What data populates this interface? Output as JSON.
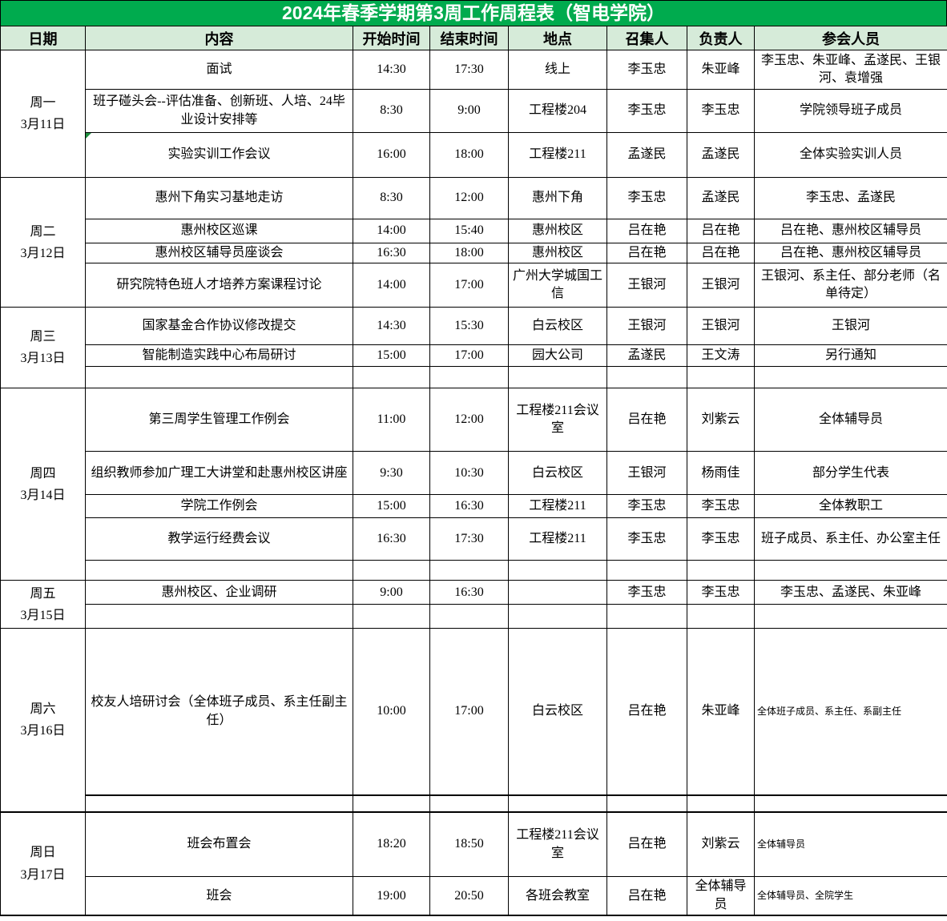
{
  "title": "2024年春季学期第3周工作周程表（智电学院）",
  "colors": {
    "title_background": "#00AB4E",
    "header_background": "#D6EBD9",
    "border": "#000000",
    "comment_marker": "#1E8E3E"
  },
  "columns": [
    "日期",
    "内容",
    "开始时间",
    "结束时间",
    "地点",
    "召集人",
    "负责人",
    "参会人员"
  ],
  "days": [
    {
      "weekday": "周一",
      "date": "3月11日",
      "rows": [
        {
          "content": "面试",
          "start": "14:30",
          "end": "17:30",
          "location": "线上",
          "convener": "李玉忠",
          "lead": "朱亚峰",
          "participants": "李玉忠、朱亚峰、孟遂民、王银河、袁增强"
        },
        {
          "content": "班子碰头会--评估准备、创新班、人培、24毕业设计安排等",
          "start": "8:30",
          "end": "9:00",
          "location": "工程楼204",
          "convener": "李玉忠",
          "lead": "李玉忠",
          "participants": "学院领导班子成员"
        },
        {
          "content": "实验实训工作会议",
          "start": "16:00",
          "end": "18:00",
          "location": "工程楼211",
          "convener": "孟遂民",
          "lead": "孟遂民",
          "participants": "全体实验实训人员",
          "marker": true
        }
      ]
    },
    {
      "weekday": "周二",
      "date": "3月12日",
      "rows": [
        {
          "content": "惠州下角实习基地走访",
          "start": "8:30",
          "end": "12:00",
          "location": "惠州下角",
          "convener": "李玉忠",
          "lead": "孟遂民",
          "participants": "李玉忠、孟遂民"
        },
        {
          "content": "惠州校区巡课",
          "start": "14:00",
          "end": "15:40",
          "location": "惠州校区",
          "convener": "吕在艳",
          "lead": "吕在艳",
          "participants": "吕在艳、惠州校区辅导员"
        },
        {
          "content": "惠州校区辅导员座谈会",
          "start": "16:30",
          "end": "18:00",
          "location": "惠州校区",
          "convener": "吕在艳",
          "lead": "吕在艳",
          "participants": "吕在艳、惠州校区辅导员"
        },
        {
          "content": "研究院特色班人才培养方案课程讨论",
          "start": "14:00",
          "end": "17:00",
          "location": "广州大学城国工信",
          "convener": "王银河",
          "lead": "王银河",
          "participants": "王银河、系主任、部分老师（名单待定）"
        }
      ]
    },
    {
      "weekday": "周三",
      "date": "3月13日",
      "rows": [
        {
          "content": "国家基金合作协议修改提交",
          "start": "14:30",
          "end": "15:30",
          "location": "白云校区",
          "convener": "王银河",
          "lead": "王银河",
          "participants": "王银河"
        },
        {
          "content": "智能制造实践中心布局研讨",
          "start": "15:00",
          "end": "17:00",
          "location": "园大公司",
          "convener": "孟遂民",
          "lead": "王文涛",
          "participants": "另行通知"
        },
        {
          "content": "",
          "start": "",
          "end": "",
          "location": "",
          "convener": "",
          "lead": "",
          "participants": ""
        }
      ]
    },
    {
      "weekday": "周四",
      "date": "3月14日",
      "rows": [
        {
          "content": "第三周学生管理工作例会",
          "start": "11:00",
          "end": "12:00",
          "location": "工程楼211会议室",
          "convener": "吕在艳",
          "lead": "刘紫云",
          "participants": "全体辅导员"
        },
        {
          "content": "组织教师参加广理工大讲堂和赴惠州校区讲座",
          "start": "9:30",
          "end": "10:30",
          "location": "白云校区",
          "convener": "王银河",
          "lead": "杨雨佳",
          "participants": "部分学生代表"
        },
        {
          "content": "学院工作例会",
          "start": "15:00",
          "end": "16:30",
          "location": "工程楼211",
          "convener": "李玉忠",
          "lead": "李玉忠",
          "participants": "全体教职工"
        },
        {
          "content": "教学运行经费会议",
          "start": "16:30",
          "end": "17:30",
          "location": "工程楼211",
          "convener": "李玉忠",
          "lead": "李玉忠",
          "participants": "班子成员、系主任、办公室主任"
        },
        {
          "content": "",
          "start": "",
          "end": "",
          "location": "",
          "convener": "",
          "lead": "",
          "participants": ""
        }
      ]
    },
    {
      "weekday": "周五",
      "date": "3月15日",
      "rows": [
        {
          "content": "惠州校区、企业调研",
          "start": "9:00",
          "end": "16:30",
          "location": "",
          "convener": "李玉忠",
          "lead": "李玉忠",
          "participants": "李玉忠、孟遂民、朱亚峰"
        },
        {
          "content": "",
          "start": "",
          "end": "",
          "location": "",
          "convener": "",
          "lead": "",
          "participants": ""
        }
      ]
    },
    {
      "weekday": "周六",
      "date": "3月16日",
      "rows": [
        {
          "content": "校友人培研讨会（全体班子成员、系主任副主任）",
          "start": "10:00",
          "end": "17:00",
          "location": "白云校区",
          "convener": "吕在艳",
          "lead": "朱亚峰",
          "participants": "全体班子成员、系主任、系副主任",
          "small": true
        },
        {
          "content": "",
          "start": "",
          "end": "",
          "location": "",
          "convener": "",
          "lead": "",
          "participants": ""
        }
      ]
    },
    {
      "weekday": "周日",
      "date": "3月17日",
      "rows": [
        {
          "content": "班会布置会",
          "start": "18:20",
          "end": "18:50",
          "location": "工程楼211会议室",
          "convener": "吕在艳",
          "lead": "刘紫云",
          "participants": "全体辅导员",
          "small": true
        },
        {
          "content": "班会",
          "start": "19:00",
          "end": "20:50",
          "location": "各班会教室",
          "convener": "吕在艳",
          "lead": "全体辅导员",
          "participants": "全体辅导员、全院学生",
          "small": true
        }
      ]
    }
  ]
}
